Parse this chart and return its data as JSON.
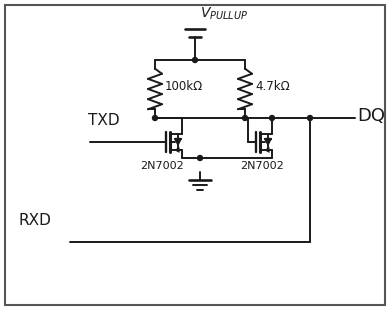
{
  "bg_color": "#ffffff",
  "line_color": "#1a1a1a",
  "text_color": "#1a1a1a",
  "figsize": [
    3.9,
    3.1
  ],
  "dpi": 100,
  "r1_label": "100kΩ",
  "r2_label": "4.7kΩ",
  "q1_label": "2N7002",
  "q2_label": "2N7002",
  "txd_label": "TXD",
  "rxd_label": "RXD",
  "dq_label": "DQ",
  "vpullup_label": "$V_{PULLUP}$"
}
